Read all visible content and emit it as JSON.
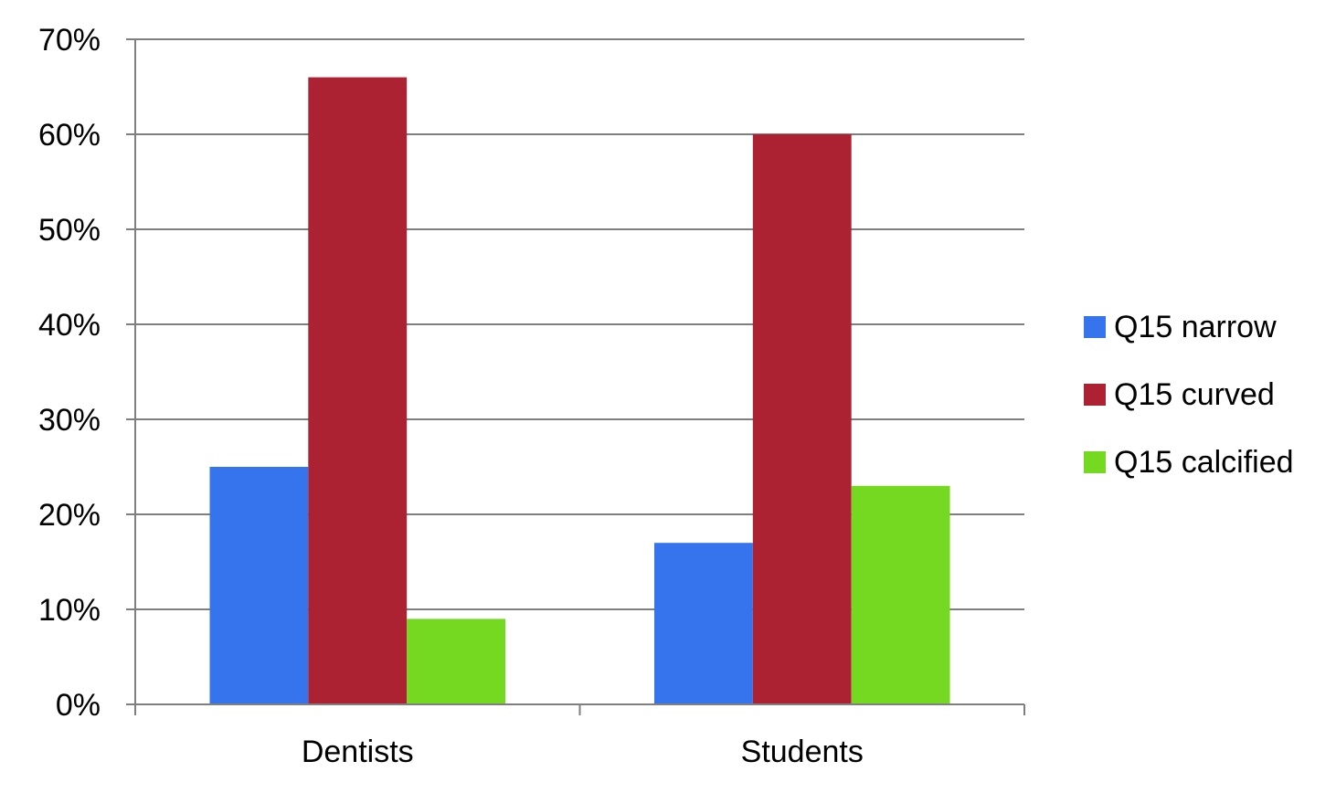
{
  "chart_data": {
    "type": "bar",
    "title": "",
    "xlabel": "",
    "ylabel": "",
    "categories": [
      "Dentists",
      "Students"
    ],
    "series": [
      {
        "name": "Q15 narrow",
        "values": [
          25,
          17
        ],
        "color": "#3674ee"
      },
      {
        "name": "Q15 curved",
        "values": [
          66,
          60
        ],
        "color": "#ad2232"
      },
      {
        "name": "Q15 calcified",
        "values": [
          9,
          23
        ],
        "color": "#74d920"
      }
    ],
    "ylim": [
      0,
      70
    ],
    "y_ticks": [
      0,
      10,
      20,
      30,
      40,
      50,
      60,
      70
    ],
    "y_tick_labels": [
      "0%",
      "10%",
      "20%",
      "30%",
      "40%",
      "50%",
      "60%",
      "70%"
    ],
    "value_unit": "%",
    "grid": true,
    "legend_position": "right",
    "colors": {
      "gridline": "#7f7f7f",
      "axis": "#7f7f7f",
      "text": "#000000",
      "background": "#ffffff"
    }
  }
}
